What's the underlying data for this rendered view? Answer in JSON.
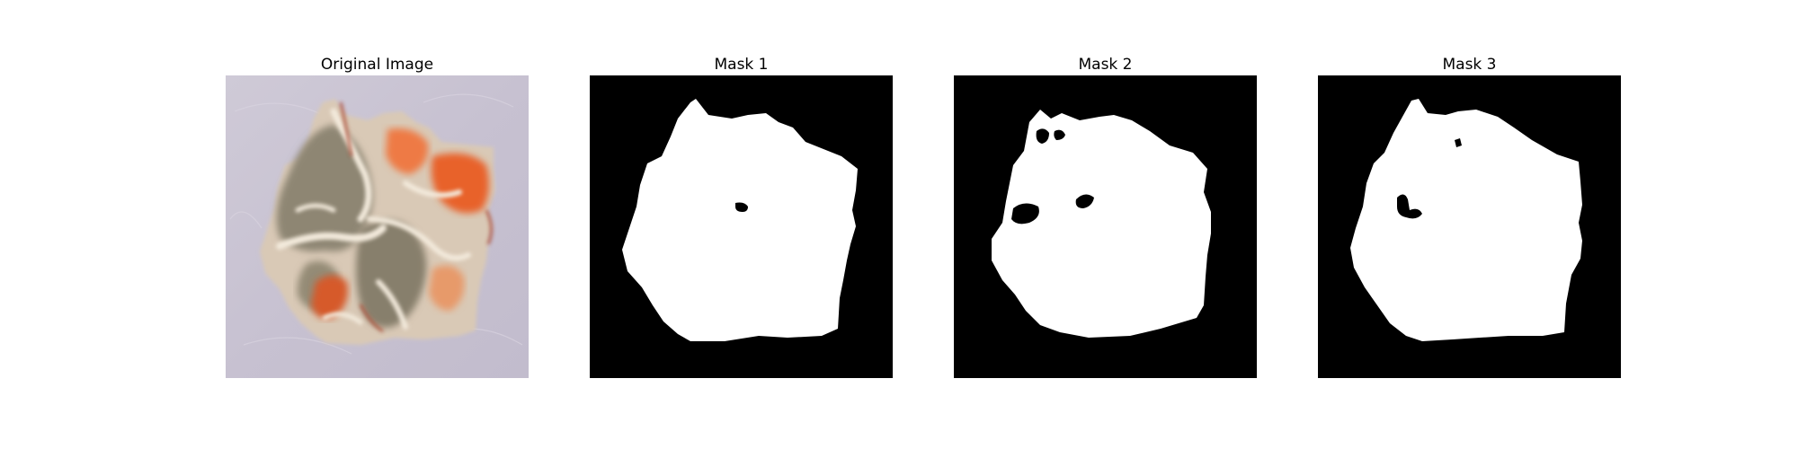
{
  "panels": [
    {
      "title": "Original Image"
    },
    {
      "title": "Mask 1"
    },
    {
      "title": "Mask 2"
    },
    {
      "title": "Mask 3"
    }
  ],
  "colors": {
    "background": "#ffffff",
    "mask_background": "#000000",
    "mask_foreground": "#ffffff",
    "photo_background": "#c9c3d3",
    "lesion_olive": "#8c8470",
    "lesion_orange": "#e8622a",
    "lesion_cream": "#f1e6d6",
    "lesion_red": "#b2452c"
  }
}
